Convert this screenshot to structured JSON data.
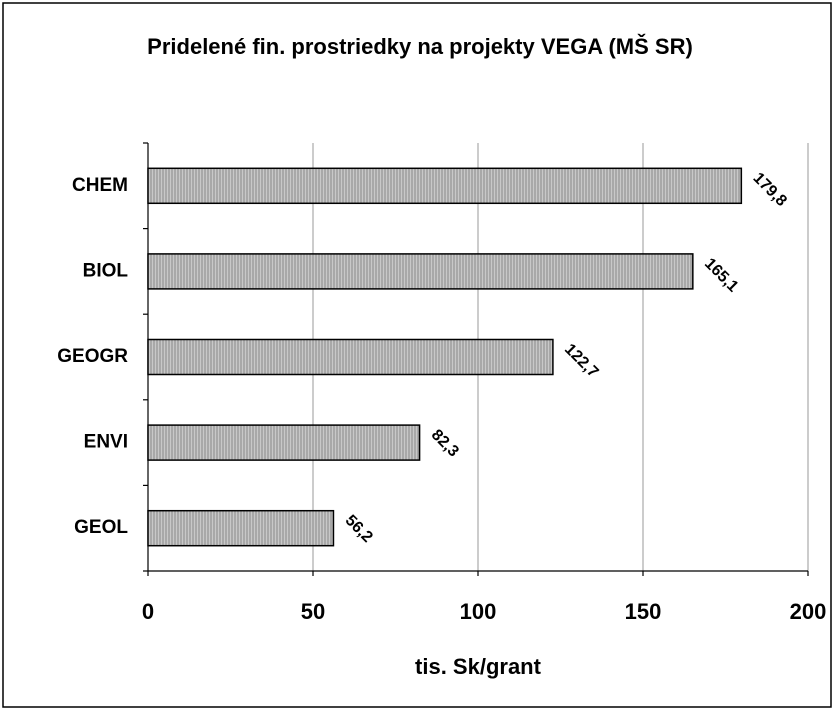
{
  "chart_data": {
    "type": "bar",
    "orientation": "horizontal",
    "title": "Pridelené fin. prostriedky na projekty VEGA (MŠ SR)",
    "x_label": "tis. Sk/grant",
    "categories": [
      "CHEM",
      "BIOL",
      "GEOGR",
      "ENVI",
      "GEOL"
    ],
    "values": [
      179.8,
      165.1,
      122.7,
      82.3,
      56.2
    ],
    "value_labels": [
      "179,8",
      "165,1",
      "122,7",
      "82,3",
      "56,2"
    ],
    "color": "#c8c8c8",
    "xlim": [
      0,
      200
    ],
    "xticks": [
      0,
      50,
      100,
      150,
      200
    ],
    "grid": true
  }
}
